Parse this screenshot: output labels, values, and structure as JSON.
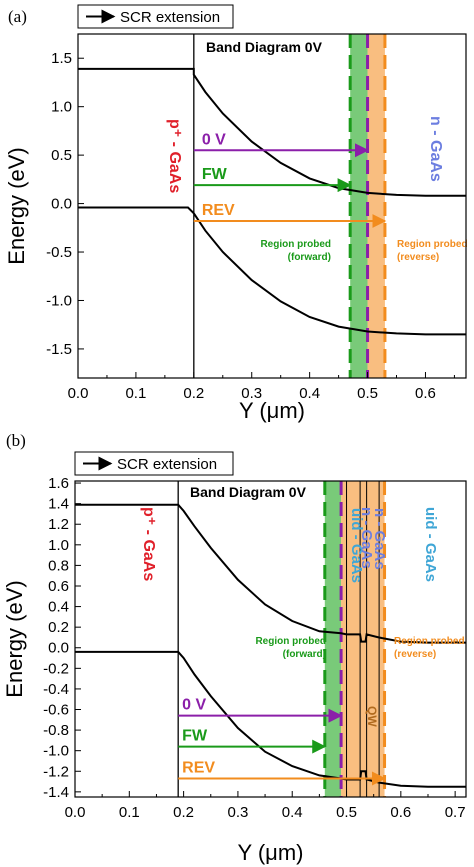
{
  "chart_data": [
    {
      "type": "line",
      "panel_label": "(a)",
      "title": "Band Diagram 0V",
      "xlabel": "Y (μm)",
      "ylabel": "Energy (eV)",
      "xlim": [
        0.0,
        0.67
      ],
      "ylim": [
        -1.8,
        1.75
      ],
      "xticks": [
        "0.0",
        "0.1",
        "0.2",
        "0.3",
        "0.4",
        "0.5",
        "0.6"
      ],
      "yticks": [
        "1.5",
        "1.0",
        "0.5",
        "0.0",
        "-0.5",
        "-1.0",
        "-1.5"
      ],
      "legend": {
        "label": "SCR extension",
        "placement": "top-left"
      },
      "series": [
        {
          "role": "conduction band",
          "x": [
            0.0,
            0.2,
            0.2,
            0.22,
            0.25,
            0.3,
            0.35,
            0.4,
            0.45,
            0.5,
            0.55,
            0.6,
            0.67
          ],
          "y": [
            1.39,
            1.39,
            1.33,
            1.15,
            0.93,
            0.64,
            0.42,
            0.26,
            0.16,
            0.11,
            0.09,
            0.08,
            0.08
          ]
        },
        {
          "role": "valence band",
          "x": [
            0.0,
            0.19,
            0.2,
            0.22,
            0.25,
            0.3,
            0.35,
            0.4,
            0.45,
            0.5,
            0.55,
            0.6,
            0.67
          ],
          "y": [
            -0.04,
            -0.04,
            -0.1,
            -0.28,
            -0.5,
            -0.79,
            -1.01,
            -1.17,
            -1.27,
            -1.32,
            -1.34,
            -1.35,
            -1.35
          ]
        }
      ],
      "junction_x": 0.2,
      "arrows": [
        {
          "label": "0 V",
          "y": 0.55,
          "x_start": 0.2,
          "x_end": 0.5,
          "color": "#8B1FA9"
        },
        {
          "label": "FW",
          "y": 0.19,
          "x_start": 0.2,
          "x_end": 0.47,
          "color": "#1A9A1A"
        },
        {
          "label": "REV",
          "y": -0.18,
          "x_start": 0.2,
          "x_end": 0.53,
          "color": "#F28C1E"
        }
      ],
      "bands": [
        {
          "x_start": 0.47,
          "x_end": 0.5,
          "color": "#4CB84C",
          "label": "Region probed\n(forward)"
        },
        {
          "x_start": 0.5,
          "x_end": 0.53,
          "color": "#F6A24A",
          "label": "Region probed\n(reverse)"
        }
      ],
      "dashed_lines": [
        {
          "x": 0.47,
          "color": "#1A9A1A"
        },
        {
          "x": 0.5,
          "color": "#8B1FA9"
        },
        {
          "x": 0.53,
          "color": "#F28C1E"
        }
      ],
      "labels": [
        {
          "text": "p⁺ - GaAs",
          "color": "#E0202A"
        },
        {
          "text": "n - GaAs",
          "color": "#6C7EE0"
        }
      ]
    },
    {
      "type": "line",
      "panel_label": "(b)",
      "title": "Band Diagram 0V",
      "xlabel": "Y (μm)",
      "ylabel": "Energy (eV)",
      "xlim": [
        0.0,
        0.72
      ],
      "ylim": [
        -1.45,
        1.62
      ],
      "xticks": [
        "0.0",
        "0.1",
        "0.2",
        "0.3",
        "0.4",
        "0.5",
        "0.6",
        "0.7"
      ],
      "yticks": [
        "1.6",
        "1.4",
        "1.2",
        "1.0",
        "0.8",
        "0.6",
        "0.4",
        "0.2",
        "0.0",
        "-0.2",
        "-0.4",
        "-0.6",
        "-0.8",
        "-1.0",
        "-1.2",
        "-1.4"
      ],
      "legend": {
        "label": "SCR extension",
        "placement": "top-left"
      },
      "series": [
        {
          "role": "conduction band",
          "x": [
            0.0,
            0.19,
            0.2,
            0.22,
            0.25,
            0.3,
            0.35,
            0.4,
            0.45,
            0.49,
            0.5,
            0.525,
            0.527,
            0.535,
            0.537,
            0.56,
            0.6,
            0.65,
            0.72
          ],
          "y": [
            1.39,
            1.39,
            1.33,
            1.18,
            0.97,
            0.66,
            0.42,
            0.26,
            0.16,
            0.14,
            0.13,
            0.13,
            0.06,
            0.06,
            0.13,
            0.1,
            0.06,
            0.05,
            0.05
          ]
        },
        {
          "role": "valence band",
          "x": [
            0.0,
            0.19,
            0.2,
            0.22,
            0.25,
            0.3,
            0.35,
            0.4,
            0.45,
            0.49,
            0.5,
            0.525,
            0.527,
            0.535,
            0.537,
            0.56,
            0.6,
            0.65,
            0.72
          ],
          "y": [
            -0.04,
            -0.04,
            -0.1,
            -0.26,
            -0.47,
            -0.78,
            -1.01,
            -1.15,
            -1.24,
            -1.27,
            -1.28,
            -1.28,
            -1.2,
            -1.2,
            -1.28,
            -1.31,
            -1.34,
            -1.35,
            -1.35
          ]
        }
      ],
      "junction_x": 0.19,
      "arrows": [
        {
          "label": "0 V",
          "y": -0.66,
          "x_start": 0.19,
          "x_end": 0.49,
          "color": "#8B1FA9"
        },
        {
          "label": "FW",
          "y": -0.96,
          "x_start": 0.19,
          "x_end": 0.46,
          "color": "#1A9A1A"
        },
        {
          "label": "REV",
          "y": -1.27,
          "x_start": 0.19,
          "x_end": 0.57,
          "color": "#F28C1E"
        }
      ],
      "bands": [
        {
          "x_start": 0.46,
          "x_end": 0.49,
          "color": "#4CB84C",
          "label": "Region probed\n(forward)"
        },
        {
          "x_start": 0.49,
          "x_end": 0.57,
          "color": "#F6A24A",
          "label": "Region probed\n(reverse)"
        }
      ],
      "dashed_lines": [
        {
          "x": 0.46,
          "color": "#1A9A1A"
        },
        {
          "x": 0.49,
          "color": "#8B1FA9"
        },
        {
          "x": 0.57,
          "color": "#F28C1E"
        }
      ],
      "solid_lines": [
        0.5,
        0.525,
        0.537,
        0.56
      ],
      "labels": [
        {
          "text": "p⁺ - GaAs",
          "color": "#E0202A"
        },
        {
          "text": "n - GaAs",
          "color": "#6C7EE0"
        },
        {
          "text": "uid - GaAs",
          "color": "#3FA6D6"
        },
        {
          "text": "uid - GaAs",
          "color": "#3FA6D6"
        },
        {
          "text": "n - GaAs",
          "color": "#6C7EE0"
        },
        {
          "text": "QW",
          "color": "#B06A1E"
        }
      ]
    }
  ]
}
